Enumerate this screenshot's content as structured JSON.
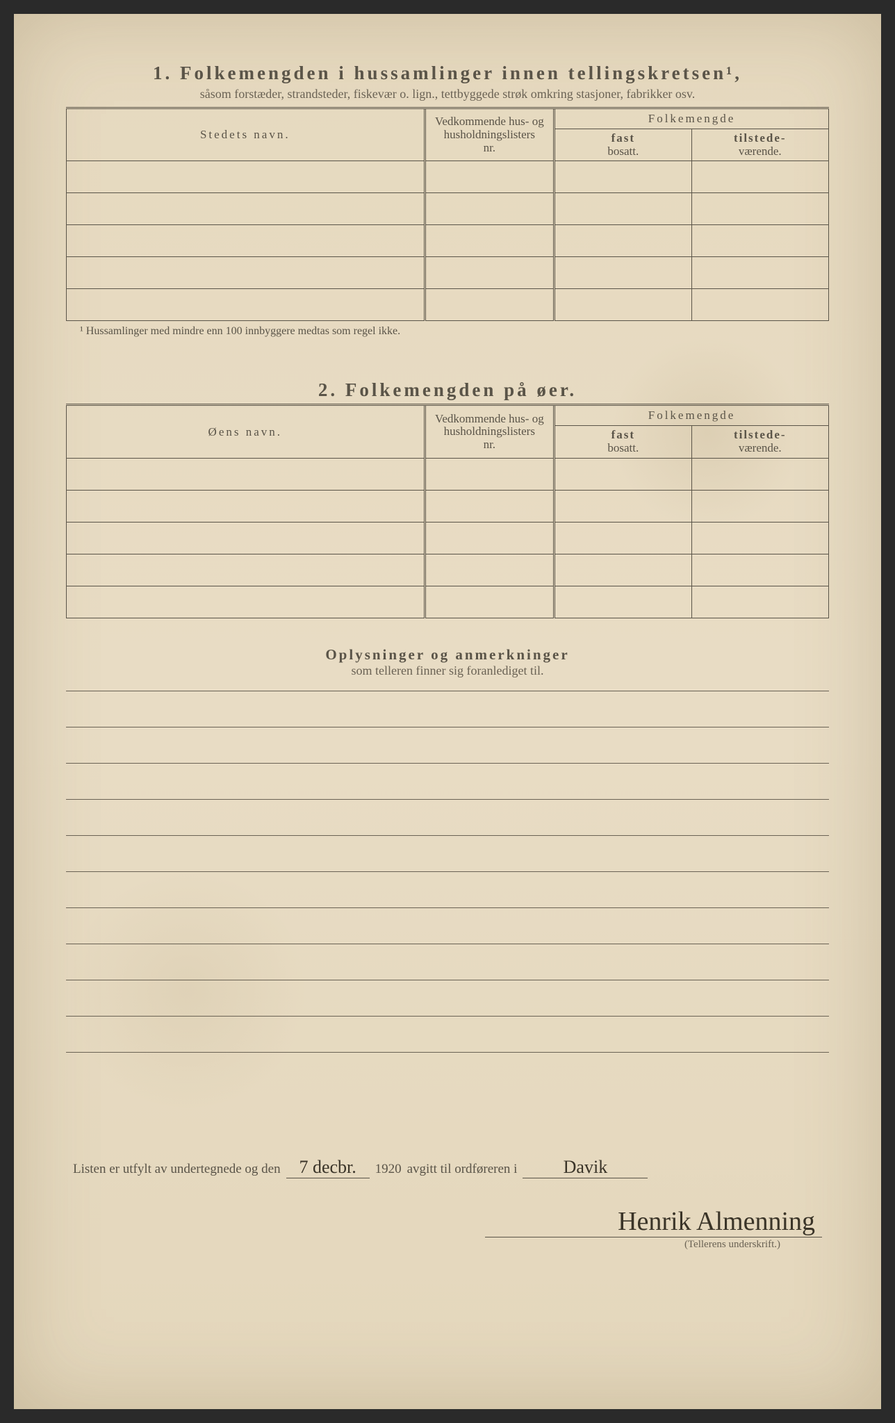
{
  "section1": {
    "number": "1.",
    "title": "Folkemengden i hussamlinger innen tellingskretsen¹,",
    "subtitle": "såsom forstæder, strandsteder, fiskevær o. lign., tettbyggede strøk omkring stasjoner, fabrikker osv.",
    "col_name": "Stedets navn.",
    "col_ref_l1": "Vedkommende hus- og",
    "col_ref_l2": "husholdningslisters",
    "col_ref_l3": "nr.",
    "col_pop": "Folkemengde",
    "col_fast_l1": "fast",
    "col_fast_l2": "bosatt.",
    "col_til_l1": "tilstede-",
    "col_til_l2": "værende.",
    "footnote": "¹ Hussamlinger med mindre enn 100 innbyggere medtas som regel ikke."
  },
  "section2": {
    "number": "2.",
    "title": "Folkemengden på øer.",
    "col_name": "Øens navn."
  },
  "remarks": {
    "title": "Oplysninger og anmerkninger",
    "subtitle": "som telleren finner sig foranlediget til."
  },
  "signature": {
    "prefix": "Listen er utfylt av undertegnede og den",
    "date": "7 decbr.",
    "year": "1920",
    "mid": "avgitt til ordføreren i",
    "place": "Davik",
    "name": "Henrik Almenning",
    "caption": "(Tellerens underskrift.)"
  },
  "layout": {
    "rows_section1": 5,
    "rows_section2": 5,
    "remarks_lines": 10
  }
}
